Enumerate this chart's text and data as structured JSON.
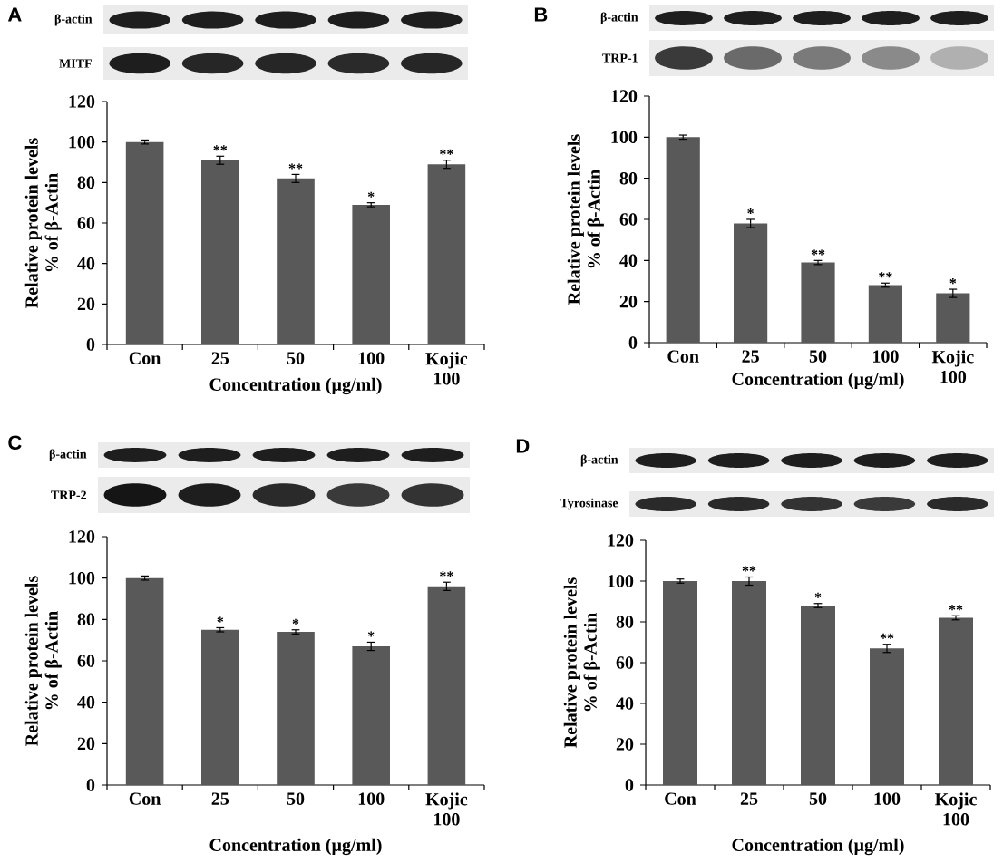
{
  "chart_data": [
    {
      "type": "bar",
      "title": "A",
      "categories": [
        "Con",
        "25",
        "50",
        "100",
        "Kojic 100"
      ],
      "values": [
        100,
        91,
        82,
        69,
        89
      ],
      "errors": [
        1,
        2,
        2,
        1,
        2
      ],
      "color": "#595959",
      "xlabel": "Concentration (µg/ml)",
      "ylabel": "Relative protein levels % of β-Actin",
      "ylim": [
        0,
        120
      ],
      "yticks": [
        0,
        20,
        40,
        60,
        80,
        100,
        120
      ],
      "annotations": [
        "β-actin",
        "MITF",
        {
          "text": "**",
          "x": "25",
          "y": 93
        },
        {
          "text": "**",
          "x": "50",
          "y": 84
        },
        {
          "text": "*",
          "x": "100",
          "y": 70
        },
        {
          "text": "**",
          "x": "Kojic 100",
          "y": 91
        }
      ]
    },
    {
      "type": "bar",
      "title": "B",
      "categories": [
        "Con",
        "25",
        "50",
        "100",
        "Kojic 100"
      ],
      "values": [
        100,
        58,
        39,
        28,
        24
      ],
      "errors": [
        1,
        2,
        1,
        1,
        2
      ],
      "color": "#595959",
      "xlabel": "Concentration (µg/ml)",
      "ylabel": "Relative protein levels % of β-Actin",
      "ylim": [
        0,
        120
      ],
      "yticks": [
        0,
        20,
        40,
        60,
        80,
        100,
        120
      ],
      "annotations": [
        "β-actin",
        "TRP-1",
        {
          "text": "*",
          "x": "25",
          "y": 60
        },
        {
          "text": "**",
          "x": "50",
          "y": 40
        },
        {
          "text": "**",
          "x": "100",
          "y": 29
        },
        {
          "text": "*",
          "x": "Kojic 100",
          "y": 26
        }
      ]
    },
    {
      "type": "bar",
      "title": "C",
      "categories": [
        "Con",
        "25",
        "50",
        "100",
        "Kojic 100"
      ],
      "values": [
        100,
        75,
        74,
        67,
        96
      ],
      "errors": [
        1,
        1,
        1,
        2,
        2
      ],
      "color": "#595959",
      "xlabel": "Concentration (µg/ml)",
      "ylabel": "Relative protein levels % of β-Actin",
      "ylim": [
        0,
        120
      ],
      "yticks": [
        0,
        20,
        40,
        60,
        80,
        100,
        120
      ],
      "annotations": [
        "β-actin",
        "TRP-2",
        {
          "text": "*",
          "x": "25",
          "y": 76
        },
        {
          "text": "*",
          "x": "50",
          "y": 75
        },
        {
          "text": "*",
          "x": "100",
          "y": 69
        },
        {
          "text": "**",
          "x": "Kojic 100",
          "y": 98
        }
      ]
    },
    {
      "type": "bar",
      "title": "D",
      "categories": [
        "Con",
        "25",
        "50",
        "100",
        "Kojic 100"
      ],
      "values": [
        100,
        100,
        88,
        67,
        82
      ],
      "errors": [
        1,
        2,
        1,
        2,
        1
      ],
      "color": "#595959",
      "xlabel": "Concentration (µg/ml)",
      "ylabel": "Relative protein levels % of β-Actin",
      "ylim": [
        0,
        120
      ],
      "yticks": [
        0,
        20,
        40,
        60,
        80,
        100,
        120
      ],
      "annotations": [
        "β-actin",
        "Tyrosinase",
        {
          "text": "**",
          "x": "25",
          "y": 102
        },
        {
          "text": "*",
          "x": "50",
          "y": 89
        },
        {
          "text": "**",
          "x": "100",
          "y": 69
        },
        {
          "text": "**",
          "x": "Kojic 100",
          "y": 83
        }
      ]
    }
  ]
}
